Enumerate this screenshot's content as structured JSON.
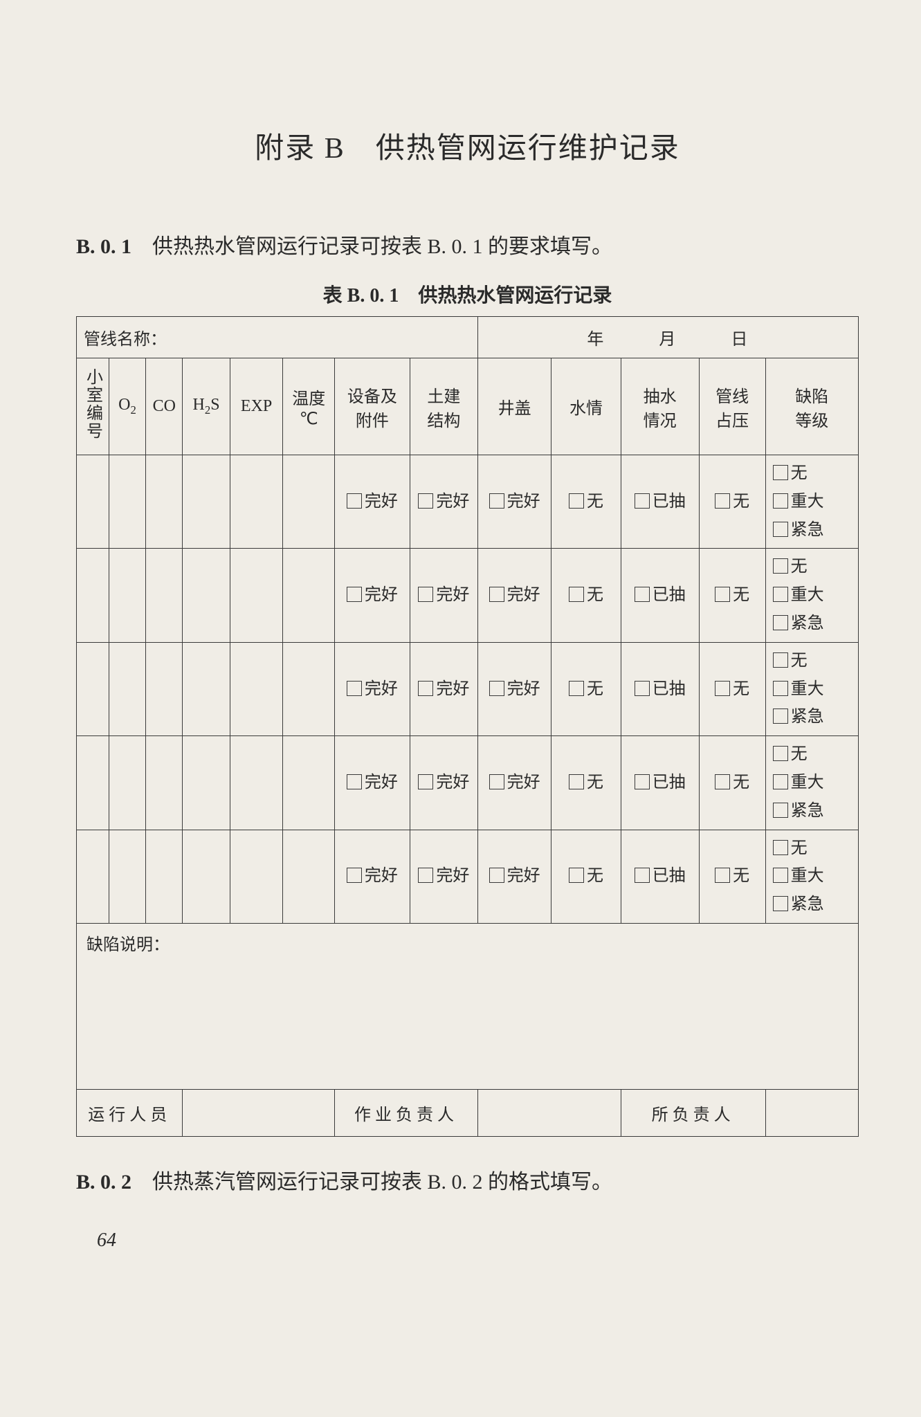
{
  "appendix_title": "附录 B　供热管网运行维护记录",
  "section_b01": {
    "num": "B. 0. 1",
    "text": "　供热热水管网运行记录可按表 B. 0. 1 的要求填写。"
  },
  "table_caption": "表 B. 0. 1　供热热水管网运行记录",
  "top": {
    "pipe_name_label": "管线名称：",
    "date_label": "年　月　日"
  },
  "headers": {
    "chamber_no": "小室编号",
    "o2": "O",
    "o2_sub": "2",
    "co": "CO",
    "h2s_h": "H",
    "h2s_sub": "2",
    "h2s_s": "S",
    "exp": "EXP",
    "temp_l1": "温度",
    "temp_l2": "℃",
    "equip_l1": "设备及",
    "equip_l2": "附件",
    "civil_l1": "土建",
    "civil_l2": "结构",
    "cover": "井盖",
    "water": "水情",
    "pump_l1": "抽水",
    "pump_l2": "情况",
    "press_l1": "管线",
    "press_l2": "占压",
    "defect_l1": "缺陷",
    "defect_l2": "等级"
  },
  "row_opts": {
    "good": "完好",
    "none": "无",
    "pumped": "已抽",
    "major": "重大",
    "urgent": "紧急"
  },
  "defect_desc_label": "缺陷说明：",
  "sign": {
    "operator": "运行人员",
    "supervisor": "作业负责人",
    "in_charge": "所负责人"
  },
  "section_b02": {
    "num": "B. 0. 2",
    "text": "　供热蒸汽管网运行记录可按表 B. 0. 2 的格式填写。"
  },
  "page_num": "64",
  "colors": {
    "bg": "#f0ede6",
    "text": "#2a2a2a",
    "border": "#3a3a3a"
  },
  "num_data_rows": 5
}
